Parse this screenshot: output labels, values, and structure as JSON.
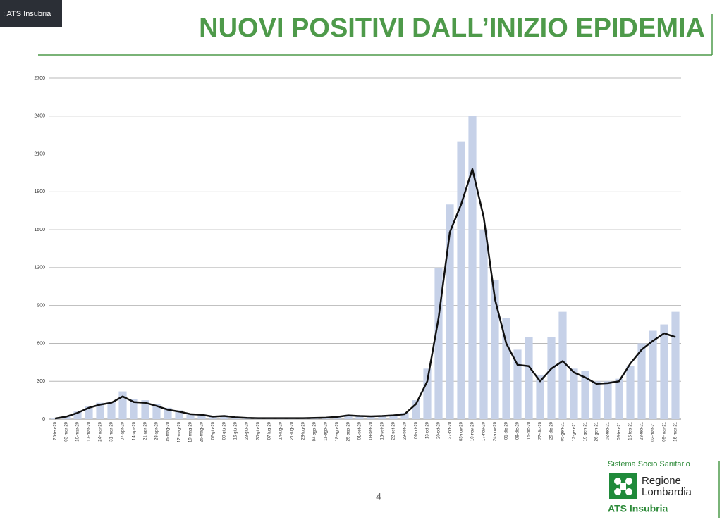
{
  "header": {
    "tag": ": ATS Insubria",
    "title": "NUOVI POSITIVI DALL’INIZIO EPIDEMIA"
  },
  "chart_data": {
    "type": "bar-line",
    "categories": [
      "25-feb-20",
      "03-mar-20",
      "10-mar-20",
      "17-mar-20",
      "24-mar-20",
      "31-mar-20",
      "07-apr-20",
      "14-apr-20",
      "21-apr-20",
      "28-apr-20",
      "05-mag-20",
      "12-mag-20",
      "19-mag-20",
      "26-mag-20",
      "02-giu-20",
      "09-giu-20",
      "16-giu-20",
      "23-giu-20",
      "30-giu-20",
      "07-lug-20",
      "14-lug-20",
      "21-lug-20",
      "28-lug-20",
      "04-ago-20",
      "11-ago-20",
      "18-ago-20",
      "25-ago-20",
      "01-set-20",
      "08-set-20",
      "15-set-20",
      "22-set-20",
      "29-set-20",
      "06-ott-20",
      "13-ott-20",
      "20-ott-20",
      "27-ott-20",
      "03-nov-20",
      "10-nov-20",
      "17-nov-20",
      "24-nov-20",
      "01-dic-20",
      "08-dic-20",
      "15-dic-20",
      "22-dic-20",
      "29-dic-20",
      "05-gen-21",
      "12-gen-21",
      "19-gen-21",
      "26-gen-21",
      "02-feb-21",
      "09-feb-21",
      "16-feb-21",
      "23-feb-21",
      "02-mar-21",
      "09-mar-21",
      "16-mar-21"
    ],
    "series": [
      {
        "color": "#c6d1e8",
        "values": [
          5,
          25,
          60,
          100,
          130,
          140,
          220,
          160,
          150,
          120,
          90,
          70,
          40,
          35,
          25,
          30,
          15,
          12,
          8,
          8,
          8,
          10,
          8,
          12,
          15,
          20,
          35,
          30,
          25,
          28,
          35,
          50,
          150,
          400,
          1200,
          1700,
          2200,
          2400,
          1500,
          1100,
          800,
          550,
          650,
          350,
          650,
          850,
          400,
          380,
          300,
          300,
          320,
          420,
          600,
          700,
          750,
          850
        ]
      },
      {
        "color": "#111111",
        "values": [
          5,
          20,
          50,
          90,
          115,
          130,
          180,
          135,
          130,
          105,
          75,
          60,
          40,
          35,
          20,
          25,
          15,
          10,
          8,
          8,
          8,
          8,
          8,
          10,
          12,
          18,
          30,
          25,
          22,
          25,
          30,
          40,
          120,
          300,
          800,
          1480,
          1700,
          1980,
          1600,
          950,
          600,
          430,
          420,
          300,
          400,
          460,
          370,
          330,
          280,
          285,
          300,
          440,
          550,
          620,
          680,
          650
        ]
      }
    ],
    "ylim": [
      0,
      2700
    ],
    "yticks": [
      0,
      300,
      600,
      900,
      1200,
      1500,
      1800,
      2100,
      2400,
      2700
    ],
    "grid": true
  },
  "footer": {
    "page": "4",
    "system": "Sistema Socio Sanitario",
    "region1": "Regione",
    "region2": "Lombardia",
    "agency": "ATS Insubria"
  }
}
